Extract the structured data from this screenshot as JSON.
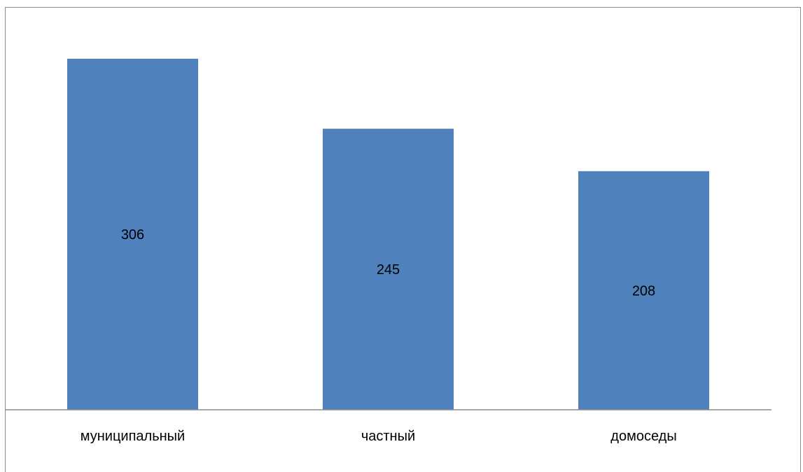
{
  "chart_data": {
    "type": "bar",
    "categories": [
      "муниципальный",
      "частный",
      "домоседы"
    ],
    "values": [
      306,
      245,
      208
    ],
    "title": "",
    "xlabel": "",
    "ylabel": "",
    "ylim": [
      0,
      340
    ],
    "grid": false,
    "legend": "none",
    "data_labels": "center",
    "bar_color": "#4F81BD",
    "axis_color": "#8C8C8C"
  }
}
